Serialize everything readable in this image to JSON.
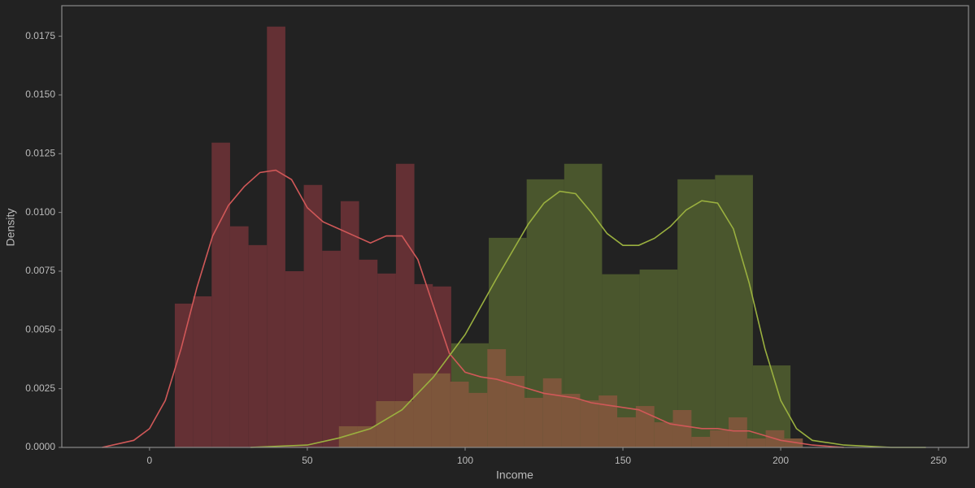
{
  "chart_data": {
    "type": "histogram",
    "xlabel": "Income",
    "ylabel": "Density",
    "xlim": [
      -27.8,
      259.5
    ],
    "ylim": [
      0,
      0.0188
    ],
    "xticks": [
      0,
      50,
      100,
      150,
      200,
      250
    ],
    "yticks": [
      {
        "value": 0,
        "label": "0.0000"
      },
      {
        "value": 0.0025,
        "label": "0.0025"
      },
      {
        "value": 0.005,
        "label": "0.0050"
      },
      {
        "value": 0.0075,
        "label": "0.0075"
      },
      {
        "value": 0.01,
        "label": "0.0100"
      },
      {
        "value": 0.0125,
        "label": "0.0125"
      },
      {
        "value": 0.015,
        "label": "0.0150"
      },
      {
        "value": 0.0175,
        "label": "0.0175"
      }
    ],
    "series": [
      {
        "color": "#643034",
        "bins": [
          8.0,
          13.84,
          19.68,
          25.52,
          31.36,
          37.2,
          43.04,
          48.88,
          54.72,
          60.56,
          66.4,
          72.24,
          78.08,
          83.92,
          89.76,
          95.6
        ],
        "values": [
          0.00612,
          0.00643,
          0.01297,
          0.00941,
          0.00861,
          0.01791,
          0.0075,
          0.01117,
          0.00837,
          0.01048,
          0.00799,
          0.0074,
          0.01207,
          0.00695,
          0.00685
        ]
      },
      {
        "color": "#4a562d",
        "bins": [
          95.6,
          107.5,
          119.5,
          131.4,
          143.4,
          155.3,
          167.3,
          179.2,
          191.2,
          203.1
        ],
        "values": [
          0.00443,
          0.00892,
          0.01141,
          0.01207,
          0.00737,
          0.00757,
          0.01141,
          0.01159,
          0.00349
        ]
      },
      {
        "color": "#7d563b",
        "bins": [
          60,
          65.88,
          71.76,
          77.64,
          83.52,
          89.4,
          95.28,
          101.16,
          107.04,
          112.92,
          118.8,
          124.68,
          130.56,
          136.44,
          142.32,
          148.2,
          154.08,
          159.96,
          165.84,
          171.72,
          177.6,
          183.48,
          189.36,
          195.24,
          201.12,
          207.0
        ],
        "values": [
          0.0009,
          0.0009,
          0.00197,
          0.00197,
          0.00315,
          0.00315,
          0.0028,
          0.00232,
          0.00418,
          0.00304,
          0.00211,
          0.00294,
          0.00228,
          0.002,
          0.00221,
          0.00128,
          0.00176,
          0.00107,
          0.00159,
          0.00045,
          0.00073,
          0.00128,
          0.00038,
          0.00073,
          0.00038
        ]
      },
      {
        "color": "#d05858",
        "x": [
          -15,
          -5,
          0,
          5,
          10,
          15,
          20,
          25,
          30,
          35,
          40,
          45,
          50,
          55,
          60,
          65,
          70,
          75,
          80,
          85,
          90,
          95,
          100,
          105,
          110,
          115,
          120,
          125,
          130,
          135,
          140,
          145,
          150,
          155,
          160,
          165,
          170,
          175,
          180,
          185,
          190,
          195,
          200,
          205,
          210,
          220
        ],
        "values": [
          0,
          0.0003,
          0.0008,
          0.002,
          0.0042,
          0.0068,
          0.009,
          0.0103,
          0.0111,
          0.0117,
          0.0118,
          0.0114,
          0.0102,
          0.0096,
          0.0093,
          0.009,
          0.0087,
          0.009,
          0.009,
          0.008,
          0.006,
          0.004,
          0.0032,
          0.003,
          0.0029,
          0.0027,
          0.0025,
          0.0023,
          0.0022,
          0.0021,
          0.0019,
          0.0018,
          0.0017,
          0.0016,
          0.0013,
          0.001,
          0.0009,
          0.0008,
          0.0008,
          0.0007,
          0.0007,
          0.0005,
          0.0003,
          0.0002,
          0.0001,
          0
        ]
      },
      {
        "color": "#9ab03f",
        "x": [
          32,
          50,
          60,
          70,
          80,
          90,
          100,
          110,
          120,
          125,
          130,
          135,
          140,
          145,
          150,
          155,
          160,
          165,
          170,
          175,
          180,
          185,
          190,
          195,
          200,
          205,
          210,
          220,
          235,
          246
        ],
        "values": [
          0,
          0.0001,
          0.0004,
          0.0008,
          0.0016,
          0.003,
          0.0048,
          0.0072,
          0.0095,
          0.0104,
          0.0109,
          0.0108,
          0.01,
          0.0091,
          0.0086,
          0.0086,
          0.0089,
          0.0094,
          0.0101,
          0.0105,
          0.0104,
          0.0093,
          0.007,
          0.0042,
          0.002,
          0.0008,
          0.0003,
          0.0001,
          0,
          0
        ]
      }
    ]
  }
}
